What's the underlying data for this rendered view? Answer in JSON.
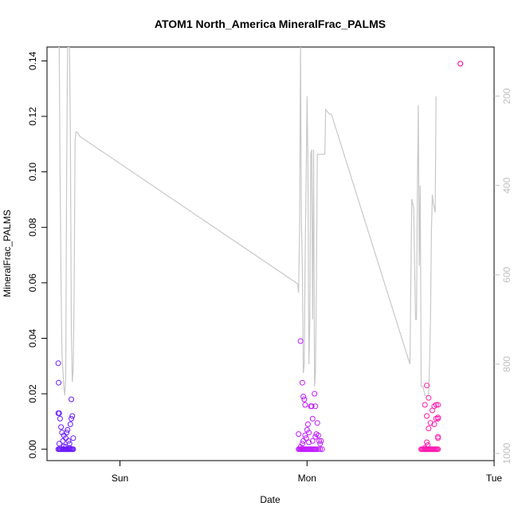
{
  "chart_data": {
    "type": "scatter",
    "title": "ATOM1 North_America MineralFrac_PALMS",
    "xlabel": "Date",
    "ylabel": "MineralFrac_PALMS",
    "xlim": [
      -0.39,
      2.0
    ],
    "ylim": [
      -0.0041,
      0.145
    ],
    "x_ticks": [
      {
        "label": "Sun",
        "value": 0
      },
      {
        "label": "Mon",
        "value": 1
      },
      {
        "label": "Tue",
        "value": 2
      }
    ],
    "y_ticks": [
      {
        "label": "0.00",
        "value": 0.0
      },
      {
        "label": "0.02",
        "value": 0.02
      },
      {
        "label": "0.04",
        "value": 0.04
      },
      {
        "label": "0.06",
        "value": 0.06
      },
      {
        "label": "0.08",
        "value": 0.08
      },
      {
        "label": "0.10",
        "value": 0.1
      },
      {
        "label": "0.12",
        "value": 0.12
      },
      {
        "label": "0.14",
        "value": 0.14
      }
    ],
    "right_axis": {
      "reversed": true,
      "range": [
        1016,
        90
      ],
      "color": "#c0c0c0",
      "ticks": [
        "200",
        "400",
        "600",
        "800",
        "1000"
      ],
      "tick_values": [
        200,
        400,
        600,
        800,
        1000
      ]
    },
    "grid": false,
    "marker": "open-circle",
    "line_color": "#c8c8c8",
    "pressure_line": {
      "x": [
        -0.33,
        -0.325,
        -0.32,
        -0.315,
        -0.31,
        -0.3,
        -0.295,
        -0.29,
        -0.285,
        -0.28,
        -0.27,
        -0.265,
        -0.26,
        -0.255,
        -0.25,
        -0.245,
        -0.24,
        -0.235,
        -0.23,
        -0.22,
        -0.215,
        0.95,
        0.955,
        0.96,
        0.965,
        0.97,
        0.975,
        0.98,
        0.985,
        0.99,
        0.995,
        1.0,
        1.005,
        1.01,
        1.015,
        1.02,
        1.025,
        1.03,
        1.035,
        1.04,
        1.045,
        1.05,
        1.055,
        1.06,
        1.065,
        1.07,
        1.075,
        1.08,
        1.085,
        1.09,
        1.095,
        1.1,
        1.12,
        1.13,
        1.55,
        1.56,
        1.57,
        1.58,
        1.585,
        1.59,
        1.595,
        1.6,
        1.605,
        1.61,
        1.62,
        1.63,
        1.64,
        1.65,
        1.655,
        1.66,
        1.665,
        1.67,
        1.675,
        1.68,
        1.685,
        1.69
      ],
      "y": [
        90,
        90,
        380,
        620,
        780,
        850,
        870,
        830,
        380,
        90,
        90,
        280,
        720,
        840,
        810,
        650,
        300,
        280,
        280,
        285,
        290,
        620,
        640,
        500,
        90,
        480,
        580,
        820,
        800,
        560,
        400,
        200,
        350,
        800,
        700,
        330,
        320,
        700,
        320,
        850,
        820,
        630,
        330,
        330,
        330,
        330,
        330,
        330,
        330,
        330,
        330,
        230,
        240,
        240,
        800,
        430,
        450,
        700,
        700,
        400,
        220,
        580,
        400,
        850,
        850,
        870,
        870,
        870,
        800,
        700,
        500,
        420,
        440,
        450,
        460,
        200
      ]
    },
    "series": [
      {
        "color": "#6a1aff",
        "points": [
          [
            -0.33,
            0.031
          ],
          [
            -0.328,
            0.024
          ],
          [
            -0.33,
            0.013
          ],
          [
            -0.325,
            0.013
          ],
          [
            -0.32,
            0.011
          ],
          [
            -0.315,
            0.008
          ],
          [
            -0.31,
            0.006
          ],
          [
            -0.3,
            0.005
          ],
          [
            -0.305,
            0.003
          ],
          [
            -0.325,
            0.002
          ],
          [
            -0.29,
            0.004
          ],
          [
            -0.285,
            0.006
          ],
          [
            -0.28,
            0.007
          ],
          [
            -0.275,
            0.003
          ],
          [
            -0.27,
            0.002
          ],
          [
            -0.265,
            0.009
          ],
          [
            -0.26,
            0.011
          ],
          [
            -0.255,
            0.012
          ],
          [
            -0.25,
            0.004
          ],
          [
            -0.26,
            0.018
          ],
          [
            -0.3,
            0.001
          ],
          [
            -0.29,
            0.0008
          ],
          [
            -0.27,
            0.0005
          ],
          [
            -0.33,
            0.0
          ],
          [
            -0.325,
            0.0
          ],
          [
            -0.32,
            0.0
          ],
          [
            -0.315,
            0.0
          ],
          [
            -0.31,
            0.0
          ],
          [
            -0.305,
            0.0
          ],
          [
            -0.3,
            0.0
          ],
          [
            -0.295,
            0.0
          ],
          [
            -0.29,
            0.0
          ],
          [
            -0.285,
            0.0
          ],
          [
            -0.28,
            0.0
          ],
          [
            -0.275,
            0.0
          ],
          [
            -0.27,
            0.0
          ],
          [
            -0.265,
            0.0
          ],
          [
            -0.26,
            0.0
          ],
          [
            -0.255,
            0.0
          ],
          [
            -0.25,
            0.0
          ]
        ]
      },
      {
        "color": "#c21aff",
        "points": [
          [
            0.965,
            0.039
          ],
          [
            0.975,
            0.024
          ],
          [
            0.98,
            0.019
          ],
          [
            0.985,
            0.018
          ],
          [
            0.99,
            0.016
          ],
          [
            1.0,
            0.007
          ],
          [
            1.005,
            0.009
          ],
          [
            1.01,
            0.006
          ],
          [
            1.02,
            0.0155
          ],
          [
            1.025,
            0.0155
          ],
          [
            1.03,
            0.011
          ],
          [
            1.04,
            0.02
          ],
          [
            1.045,
            0.0155
          ],
          [
            1.055,
            0.0095
          ],
          [
            1.05,
            0.0055
          ],
          [
            1.06,
            0.005
          ],
          [
            1.065,
            0.003
          ],
          [
            1.07,
            0.002
          ],
          [
            1.075,
            0.003
          ],
          [
            0.98,
            0.003
          ],
          [
            0.99,
            0.005
          ],
          [
            0.995,
            0.004
          ],
          [
            0.975,
            0.002
          ],
          [
            0.965,
            0.0008
          ],
          [
            1.03,
            0.003
          ],
          [
            1.01,
            0.0025
          ],
          [
            0.955,
            0.0055
          ],
          [
            1.045,
            0.0045
          ],
          [
            0.955,
            0.0
          ],
          [
            0.96,
            0.0
          ],
          [
            0.965,
            0.0
          ],
          [
            0.97,
            0.0
          ],
          [
            0.975,
            0.0
          ],
          [
            0.98,
            0.0
          ],
          [
            0.985,
            0.0
          ],
          [
            0.99,
            0.0
          ],
          [
            0.995,
            0.0
          ],
          [
            1.0,
            0.0
          ],
          [
            1.005,
            0.0
          ],
          [
            1.01,
            0.0
          ],
          [
            1.015,
            0.0
          ],
          [
            1.02,
            0.0
          ],
          [
            1.025,
            0.0
          ],
          [
            1.03,
            0.0
          ],
          [
            1.035,
            0.0
          ],
          [
            1.04,
            0.0
          ],
          [
            1.045,
            0.0
          ],
          [
            1.05,
            0.0
          ],
          [
            1.06,
            0.0
          ],
          [
            1.07,
            0.0
          ],
          [
            1.08,
            0.0
          ]
        ]
      },
      {
        "color": "#ff1ab0",
        "points": [
          [
            1.82,
            0.139
          ],
          [
            1.82,
            0.139
          ],
          [
            1.64,
            0.023
          ],
          [
            1.65,
            0.0185
          ],
          [
            1.63,
            0.016
          ],
          [
            1.66,
            0.0095
          ],
          [
            1.67,
            0.014
          ],
          [
            1.68,
            0.0155
          ],
          [
            1.69,
            0.016
          ],
          [
            1.7,
            0.016
          ],
          [
            1.64,
            0.012
          ],
          [
            1.69,
            0.011
          ],
          [
            1.7,
            0.0115
          ],
          [
            1.7,
            0.011
          ],
          [
            1.65,
            0.0075
          ],
          [
            1.68,
            0.009
          ],
          [
            1.64,
            0.0025
          ],
          [
            1.645,
            0.0015
          ],
          [
            1.7,
            0.0045
          ],
          [
            1.7,
            0.004
          ],
          [
            1.63,
            0.0005
          ],
          [
            1.61,
            0.0
          ],
          [
            1.615,
            0.0
          ],
          [
            1.62,
            0.0
          ],
          [
            1.625,
            0.0
          ],
          [
            1.63,
            0.0
          ],
          [
            1.635,
            0.0
          ],
          [
            1.64,
            0.0
          ],
          [
            1.645,
            0.0
          ],
          [
            1.65,
            0.0
          ],
          [
            1.655,
            0.0
          ],
          [
            1.66,
            0.0
          ],
          [
            1.665,
            0.0
          ],
          [
            1.67,
            0.0
          ],
          [
            1.675,
            0.0
          ],
          [
            1.68,
            0.0
          ],
          [
            1.685,
            0.0
          ],
          [
            1.69,
            0.0
          ],
          [
            1.695,
            0.0
          ],
          [
            1.7,
            0.0
          ]
        ]
      }
    ]
  }
}
